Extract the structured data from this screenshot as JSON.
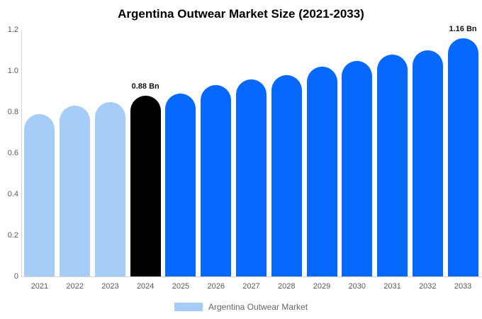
{
  "title": "Argentina Outwear Market Size (2021-2033)",
  "legend": {
    "label": "Argentina Outwear Market",
    "swatch_color": "#A6CDF8"
  },
  "palette": {
    "historical": "#A6CDF8",
    "base_year": "#000000",
    "forecast": "#0768FD",
    "axis_line": "#D6D6D6",
    "tick_text": "#58595B",
    "legend_text": "#666666",
    "title_text": "#000000",
    "background": "#FFFFFF"
  },
  "chart_data": {
    "type": "bar",
    "title": "Argentina Outwear Market Size (2021-2033)",
    "unit": "Bn",
    "categories": [
      "2021",
      "2022",
      "2023",
      "2024",
      "2025",
      "2026",
      "2027",
      "2028",
      "2029",
      "2030",
      "2031",
      "2032",
      "2033"
    ],
    "values": [
      0.79,
      0.83,
      0.85,
      0.88,
      0.89,
      0.93,
      0.96,
      0.98,
      1.02,
      1.05,
      1.08,
      1.1,
      1.16
    ],
    "bar_roles": [
      "historical",
      "historical",
      "historical",
      "base_year",
      "forecast",
      "forecast",
      "forecast",
      "forecast",
      "forecast",
      "forecast",
      "forecast",
      "forecast",
      "forecast"
    ],
    "point_labels": [
      "",
      "",
      "",
      "0.88 Bn",
      "",
      "",
      "",
      "",
      "",
      "",
      "",
      "",
      "1.16 Bn"
    ],
    "xlabel": "",
    "ylabel": "",
    "ylim": [
      0,
      1.2
    ],
    "yticks": [
      {
        "value": 0,
        "label": "0"
      },
      {
        "value": 0.2,
        "label": "0.2"
      },
      {
        "value": 0.4,
        "label": "0.4"
      },
      {
        "value": 0.6,
        "label": "0.6"
      },
      {
        "value": 0.8,
        "label": "0.8"
      },
      {
        "value": 1.0,
        "label": "1.0"
      },
      {
        "value": 1.2,
        "label": "1.2"
      }
    ],
    "grid": false,
    "legend_position": "bottom",
    "legend_entries": [
      "Argentina Outwear Market"
    ]
  }
}
